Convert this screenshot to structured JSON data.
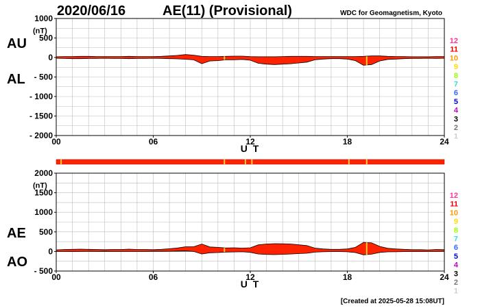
{
  "date": "2020/06/16",
  "title": "AE(11) (Provisional)",
  "source": "WDC for Geomagnetism, Kyoto",
  "created": "[Created at 2025-05-28 15:08UT]",
  "xlabel": "U T",
  "unit_label": "(nT)",
  "colors": {
    "fill": "#ff2200",
    "outline": "#000000",
    "grid": "#bbbbbb",
    "highlight": "#ffcc33"
  },
  "legend": [
    {
      "label": "12",
      "color": "#ff3399"
    },
    {
      "label": "11",
      "color": "#ee0000"
    },
    {
      "label": "10",
      "color": "#ff9900"
    },
    {
      "label": "9",
      "color": "#ffdd00"
    },
    {
      "label": "8",
      "color": "#99ff00"
    },
    {
      "label": "7",
      "color": "#33dddd"
    },
    {
      "label": "6",
      "color": "#3366ff"
    },
    {
      "label": "5",
      "color": "#0000cc"
    },
    {
      "label": "4",
      "color": "#cc00cc"
    },
    {
      "label": "3",
      "color": "#000000"
    },
    {
      "label": "2",
      "color": "#777777"
    },
    {
      "label": "1",
      "color": "#cccccc"
    }
  ],
  "chart_data": [
    {
      "type": "area",
      "name": "AU/AL",
      "labels": {
        "top": "AU",
        "bottom": "AL"
      },
      "ylim": [
        -2000,
        1000
      ],
      "yticks": [
        1000,
        500,
        0,
        -500,
        -1000,
        -1500,
        -2000
      ],
      "ytick_labels": [
        "1000",
        "500",
        "0",
        "- 500",
        "- 1000",
        "- 1500",
        "- 2000"
      ],
      "xlim": [
        0,
        24
      ],
      "xticks": [
        0,
        6,
        12,
        18,
        24
      ],
      "xtick_labels": [
        "00",
        "06",
        "12",
        "18",
        "24"
      ],
      "grid": true,
      "series": [
        {
          "name": "AU",
          "x": [
            0,
            0.5,
            1,
            1.5,
            2,
            2.5,
            3,
            3.5,
            4,
            4.5,
            5,
            5.5,
            6,
            6.5,
            7,
            7.5,
            8,
            8.5,
            9,
            9.5,
            10,
            10.5,
            11,
            11.5,
            12,
            12.5,
            13,
            13.5,
            14,
            14.5,
            15,
            15.5,
            16,
            16.5,
            17,
            17.5,
            18,
            18.5,
            19,
            19.5,
            20,
            20.5,
            21,
            21.5,
            22,
            22.5,
            23,
            23.5,
            24
          ],
          "values": [
            20,
            25,
            25,
            30,
            30,
            25,
            25,
            25,
            25,
            30,
            25,
            25,
            25,
            30,
            40,
            55,
            75,
            60,
            30,
            25,
            25,
            30,
            35,
            35,
            25,
            20,
            20,
            20,
            25,
            30,
            30,
            30,
            25,
            25,
            25,
            25,
            25,
            25,
            30,
            40,
            40,
            30,
            25,
            25,
            20,
            20,
            20,
            25,
            25
          ]
        },
        {
          "name": "AL",
          "x": [
            0,
            0.5,
            1,
            1.5,
            2,
            2.5,
            3,
            3.5,
            4,
            4.5,
            5,
            5.5,
            6,
            6.5,
            7,
            7.5,
            8,
            8.5,
            9,
            9.5,
            10,
            10.5,
            11,
            11.5,
            12,
            12.5,
            13,
            13.5,
            14,
            14.5,
            15,
            15.5,
            16,
            16.5,
            17,
            17.5,
            18,
            18.5,
            19,
            19.5,
            20,
            20.5,
            21,
            21.5,
            22,
            22.5,
            23,
            23.5,
            24
          ],
          "values": [
            -20,
            -25,
            -30,
            -30,
            -25,
            -25,
            -20,
            -25,
            -25,
            -30,
            -25,
            -25,
            -20,
            -25,
            -30,
            -35,
            -45,
            -60,
            -160,
            -90,
            -80,
            -60,
            -60,
            -50,
            -70,
            -150,
            -170,
            -180,
            -170,
            -160,
            -140,
            -120,
            -60,
            -40,
            -30,
            -30,
            -40,
            -80,
            -200,
            -180,
            -90,
            -50,
            -40,
            -30,
            -25,
            -25,
            -20,
            -25,
            -20
          ]
        }
      ],
      "highlight_hours": [
        10.4,
        19.2
      ]
    },
    {
      "type": "bar",
      "name": "station-count strip",
      "xlim": [
        0,
        24
      ],
      "value": 11,
      "highlight_hours": [
        0.3,
        10.4,
        11.7,
        12.1,
        18.1,
        19.2
      ]
    },
    {
      "type": "area",
      "name": "AE/AO",
      "labels": {
        "top": "AE",
        "bottom": "AO"
      },
      "ylim": [
        -500,
        2000
      ],
      "yticks": [
        2000,
        1500,
        1000,
        500,
        0,
        -500
      ],
      "ytick_labels": [
        "2000",
        "1500",
        "1000",
        "500",
        "0",
        "- 500"
      ],
      "xlim": [
        0,
        24
      ],
      "xticks": [
        0,
        6,
        12,
        18,
        24
      ],
      "xtick_labels": [
        "00",
        "06",
        "12",
        "18",
        "24"
      ],
      "grid": true,
      "series": [
        {
          "name": "AE",
          "x": [
            0,
            0.5,
            1,
            1.5,
            2,
            2.5,
            3,
            3.5,
            4,
            4.5,
            5,
            5.5,
            6,
            6.5,
            7,
            7.5,
            8,
            8.5,
            9,
            9.5,
            10,
            10.5,
            11,
            11.5,
            12,
            12.5,
            13,
            13.5,
            14,
            14.5,
            15,
            15.5,
            16,
            16.5,
            17,
            17.5,
            18,
            18.5,
            19,
            19.5,
            20,
            20.5,
            21,
            21.5,
            22,
            22.5,
            23,
            23.5,
            24
          ],
          "values": [
            40,
            50,
            55,
            60,
            55,
            50,
            45,
            50,
            50,
            60,
            50,
            50,
            45,
            55,
            70,
            90,
            120,
            120,
            190,
            115,
            105,
            90,
            95,
            85,
            95,
            170,
            190,
            200,
            195,
            190,
            170,
            150,
            85,
            65,
            55,
            55,
            65,
            105,
            230,
            220,
            130,
            80,
            65,
            55,
            45,
            45,
            40,
            50,
            45
          ]
        },
        {
          "name": "AO",
          "x": [
            0,
            0.5,
            1,
            1.5,
            2,
            2.5,
            3,
            3.5,
            4,
            4.5,
            5,
            5.5,
            6,
            6.5,
            7,
            7.5,
            8,
            8.5,
            9,
            9.5,
            10,
            10.5,
            11,
            11.5,
            12,
            12.5,
            13,
            13.5,
            14,
            14.5,
            15,
            15.5,
            16,
            16.5,
            17,
            17.5,
            18,
            18.5,
            19,
            19.5,
            20,
            20.5,
            21,
            21.5,
            22,
            22.5,
            23,
            23.5,
            24
          ],
          "values": [
            0,
            0,
            -3,
            0,
            3,
            0,
            3,
            0,
            0,
            0,
            0,
            0,
            3,
            3,
            5,
            10,
            15,
            0,
            -65,
            -33,
            -28,
            -15,
            -13,
            -8,
            -23,
            -65,
            -75,
            -80,
            -73,
            -65,
            -55,
            -45,
            -18,
            -8,
            -3,
            -3,
            -8,
            -28,
            -85,
            -70,
            -25,
            -10,
            -8,
            -3,
            -3,
            -3,
            0,
            0,
            3
          ]
        }
      ],
      "highlight_hours": [
        10.4,
        19.2
      ]
    }
  ]
}
